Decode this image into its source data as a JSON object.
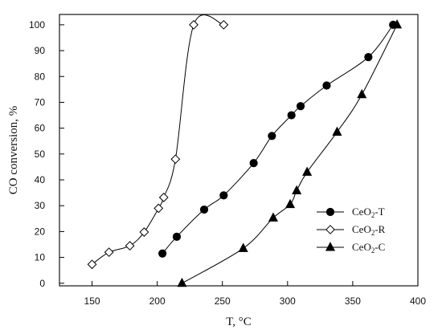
{
  "chart_data": {
    "type": "scatter",
    "xlabel": "T, °C",
    "ylabel": "CO conversion, %",
    "xlim": [
      125,
      400
    ],
    "ylim": [
      -1,
      104
    ],
    "x_ticks": [
      150,
      200,
      250,
      300,
      350,
      400
    ],
    "y_ticks": [
      0,
      10,
      20,
      30,
      40,
      50,
      60,
      70,
      80,
      90,
      100
    ],
    "grid": false,
    "legend_position": "bottom-right",
    "series": [
      {
        "name": "CeO2-T",
        "marker": "filled-circle",
        "color": "#000000",
        "points": [
          [
            204,
            11.5
          ],
          [
            215,
            18
          ],
          [
            236,
            28.5
          ],
          [
            251,
            34
          ],
          [
            274,
            46.5
          ],
          [
            288,
            57
          ],
          [
            303,
            65
          ],
          [
            310,
            68.5
          ],
          [
            330,
            76.5
          ],
          [
            362,
            87.5
          ],
          [
            381,
            100
          ]
        ]
      },
      {
        "name": "CeO2-R",
        "marker": "open-diamond",
        "color": "#000000",
        "points": [
          [
            150,
            7.3
          ],
          [
            163,
            12
          ],
          [
            179,
            14.5
          ],
          [
            190,
            19.8
          ],
          [
            201,
            29
          ],
          [
            205,
            33.2
          ],
          [
            214,
            48
          ],
          [
            228,
            100
          ],
          [
            251,
            100
          ]
        ]
      },
      {
        "name": "CeO2-C",
        "marker": "filled-triangle",
        "color": "#000000",
        "points": [
          [
            219,
            0
          ],
          [
            266,
            13.5
          ],
          [
            289,
            25.3
          ],
          [
            302,
            30.5
          ],
          [
            307,
            35.8
          ],
          [
            315,
            43
          ],
          [
            338,
            58.5
          ],
          [
            357,
            73
          ],
          [
            384,
            100
          ]
        ]
      }
    ]
  }
}
